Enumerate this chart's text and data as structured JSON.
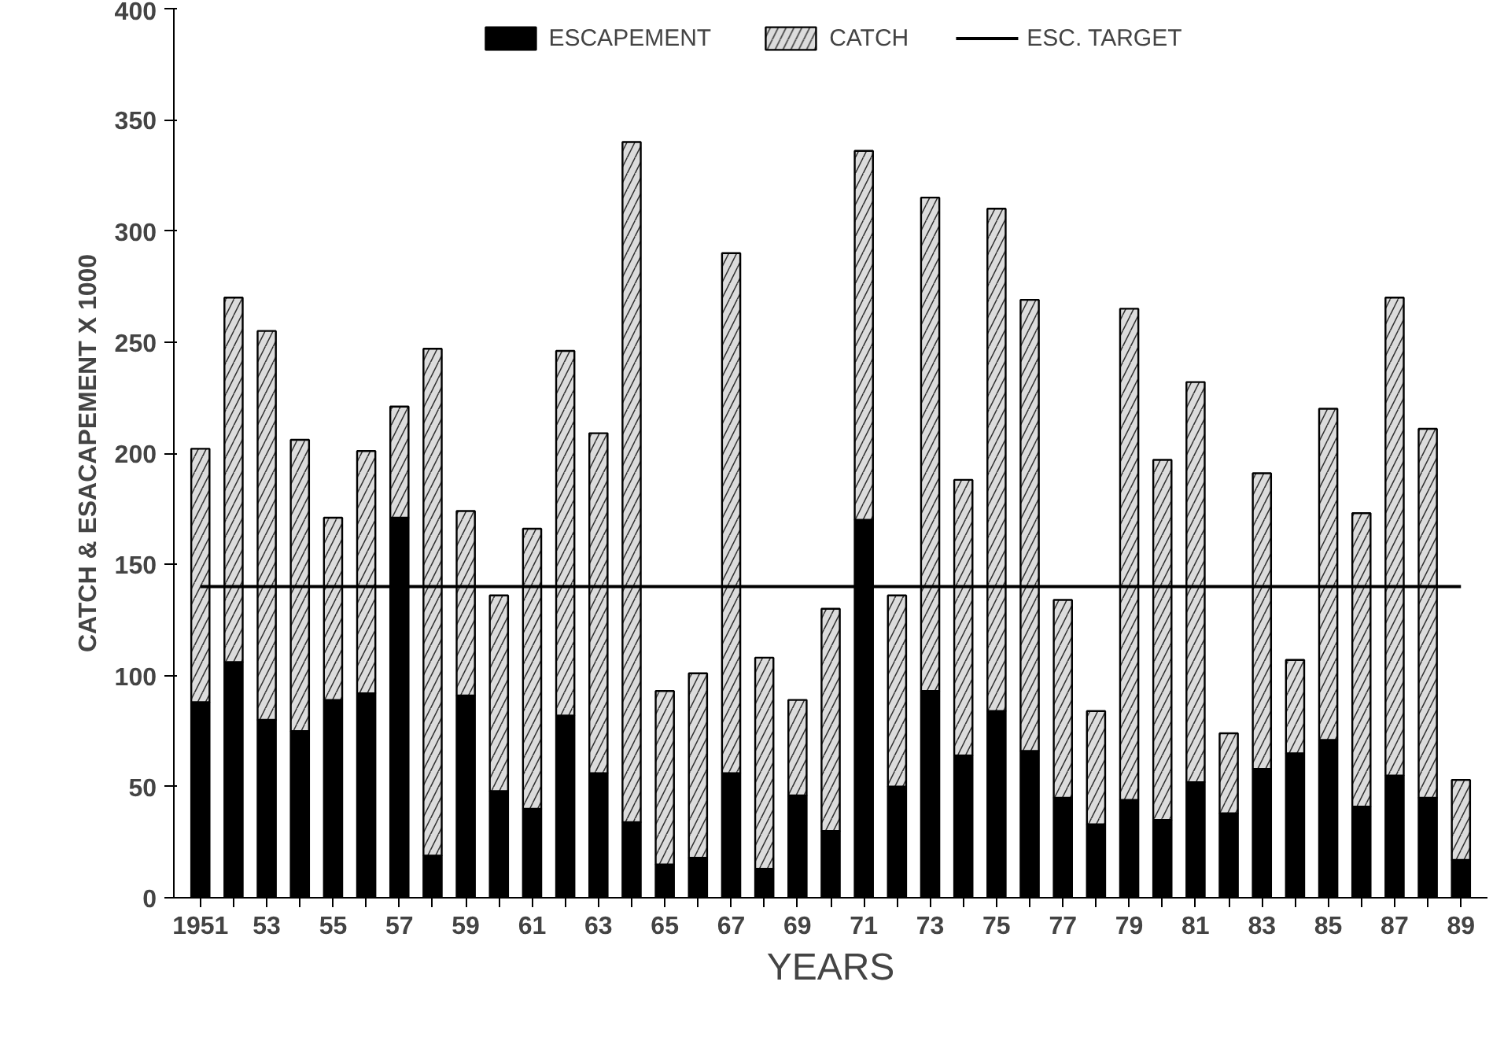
{
  "chart_data": {
    "type": "bar",
    "stacked": true,
    "xlabel": "YEARS",
    "ylabel": "CATCH & ESACAPEMENT X 1000",
    "categories": [
      "1951",
      null,
      "53",
      null,
      "55",
      null,
      "57",
      null,
      "59",
      null,
      "61",
      null,
      "63",
      null,
      "65",
      null,
      "67",
      null,
      "69",
      null,
      "71",
      null,
      "73",
      null,
      "75",
      null,
      "77",
      null,
      "79",
      null,
      "81",
      null,
      "83",
      null,
      "85",
      null,
      "87",
      null,
      "89"
    ],
    "series": [
      {
        "name": "ESCAPEMENT",
        "color": "#000000",
        "values": [
          88,
          106,
          80,
          75,
          89,
          92,
          171,
          19,
          91,
          48,
          40,
          82,
          56,
          34,
          15,
          18,
          56,
          13,
          46,
          30,
          170,
          50,
          93,
          64,
          84,
          66,
          45,
          33,
          44,
          35,
          52,
          38,
          58,
          65,
          71,
          41,
          55,
          45,
          17
        ]
      },
      {
        "name": "CATCH",
        "color": "#dcdcdc",
        "values": [
          114,
          164,
          175,
          131,
          82,
          109,
          50,
          228,
          83,
          88,
          126,
          164,
          153,
          306,
          78,
          83,
          234,
          95,
          43,
          100,
          166,
          86,
          222,
          124,
          226,
          203,
          89,
          51,
          221,
          162,
          180,
          36,
          133,
          42,
          149,
          132,
          215,
          166,
          36
        ]
      }
    ],
    "ref_lines": [
      {
        "axis": "y",
        "value": 140,
        "label": "ESC. TARGET",
        "color": "#000000",
        "line_style": "solid"
      }
    ],
    "ylim": [
      0,
      400
    ],
    "yticks": [
      0,
      50,
      100,
      150,
      200,
      250,
      300,
      350,
      400
    ],
    "grid": false,
    "legend": "top"
  }
}
